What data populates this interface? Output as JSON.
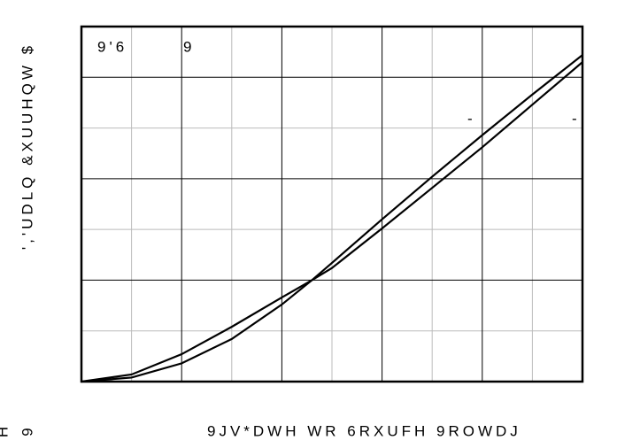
{
  "chart_data": {
    "type": "line",
    "ylabel": "','UDLQ &XUUHQW $",
    "xlabel": "9JV*DWH WR 6RXUFH 9ROWDJ",
    "corner_texts": [
      "H",
      "9"
    ],
    "annotations": [
      "9'6",
      "9",
      "-",
      "-"
    ],
    "x": [
      0,
      0.5,
      1,
      1.5,
      2,
      2.3,
      2.5,
      3,
      3.5,
      4,
      4.5,
      5
    ],
    "series": [
      {
        "color": "#000000",
        "values": [
          0,
          0.04,
          0.18,
          0.42,
          0.76,
          1.0,
          1.17,
          1.6,
          2.02,
          2.43,
          2.83,
          3.22
        ]
      },
      {
        "color": "#000000",
        "values": [
          0,
          0.07,
          0.27,
          0.54,
          0.83,
          1.0,
          1.12,
          1.51,
          1.91,
          2.31,
          2.73,
          3.15
        ]
      }
    ],
    "xlim": [
      0,
      5
    ],
    "ylim": [
      0,
      3.5
    ],
    "xgrid_major": [
      1,
      2,
      3,
      4
    ],
    "xgrid_minor": [
      0.5,
      1.5,
      2.5,
      3.5,
      4.5
    ],
    "ygrid_major": [
      1,
      2,
      3
    ],
    "ygrid_minor": [
      0.5,
      1.5,
      2.5
    ]
  }
}
